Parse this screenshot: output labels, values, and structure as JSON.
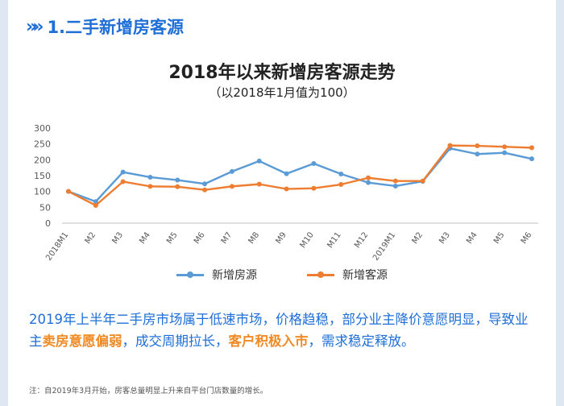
{
  "section": {
    "chevrons": "»»",
    "title": "1.二手新增房客源"
  },
  "chart_data": {
    "type": "line",
    "title": "2018年以来新增房客源走势",
    "subtitle": "（以2018年1月值为100）",
    "categories": [
      "2018M1",
      "M2",
      "M3",
      "M4",
      "M5",
      "M6",
      "M7",
      "M8",
      "M9",
      "M10",
      "M11",
      "M12",
      "2019M1",
      "M2",
      "M3",
      "M4",
      "M5",
      "M6"
    ],
    "series": [
      {
        "name": "新增房源",
        "color": "#5b9bd5",
        "values": [
          100,
          68,
          161,
          145,
          136,
          124,
          163,
          196,
          156,
          188,
          155,
          128,
          117,
          132,
          236,
          218,
          222,
          203
        ]
      },
      {
        "name": "新增客源",
        "color": "#ed7d31",
        "values": [
          100,
          56,
          131,
          116,
          115,
          105,
          116,
          123,
          108,
          110,
          122,
          143,
          133,
          133,
          245,
          244,
          241,
          238
        ]
      }
    ],
    "ylim": [
      0,
      300
    ],
    "yticks": [
      0,
      50,
      100,
      150,
      200,
      250,
      300
    ],
    "grid": false,
    "legend_position": "bottom"
  },
  "summary": {
    "part1": "2019年上半年二手房市场属于低速市场，价格趋稳，部分业主降价意愿明显，导致业主",
    "highlight1": "卖房意愿偏弱",
    "part2": "，成交周期拉长，",
    "highlight2": "客户积极入市",
    "part3": "，需求稳定释放。"
  },
  "note": "注：自2019年3月开始，房客总量明显上升来自平台门店数量的增长。"
}
